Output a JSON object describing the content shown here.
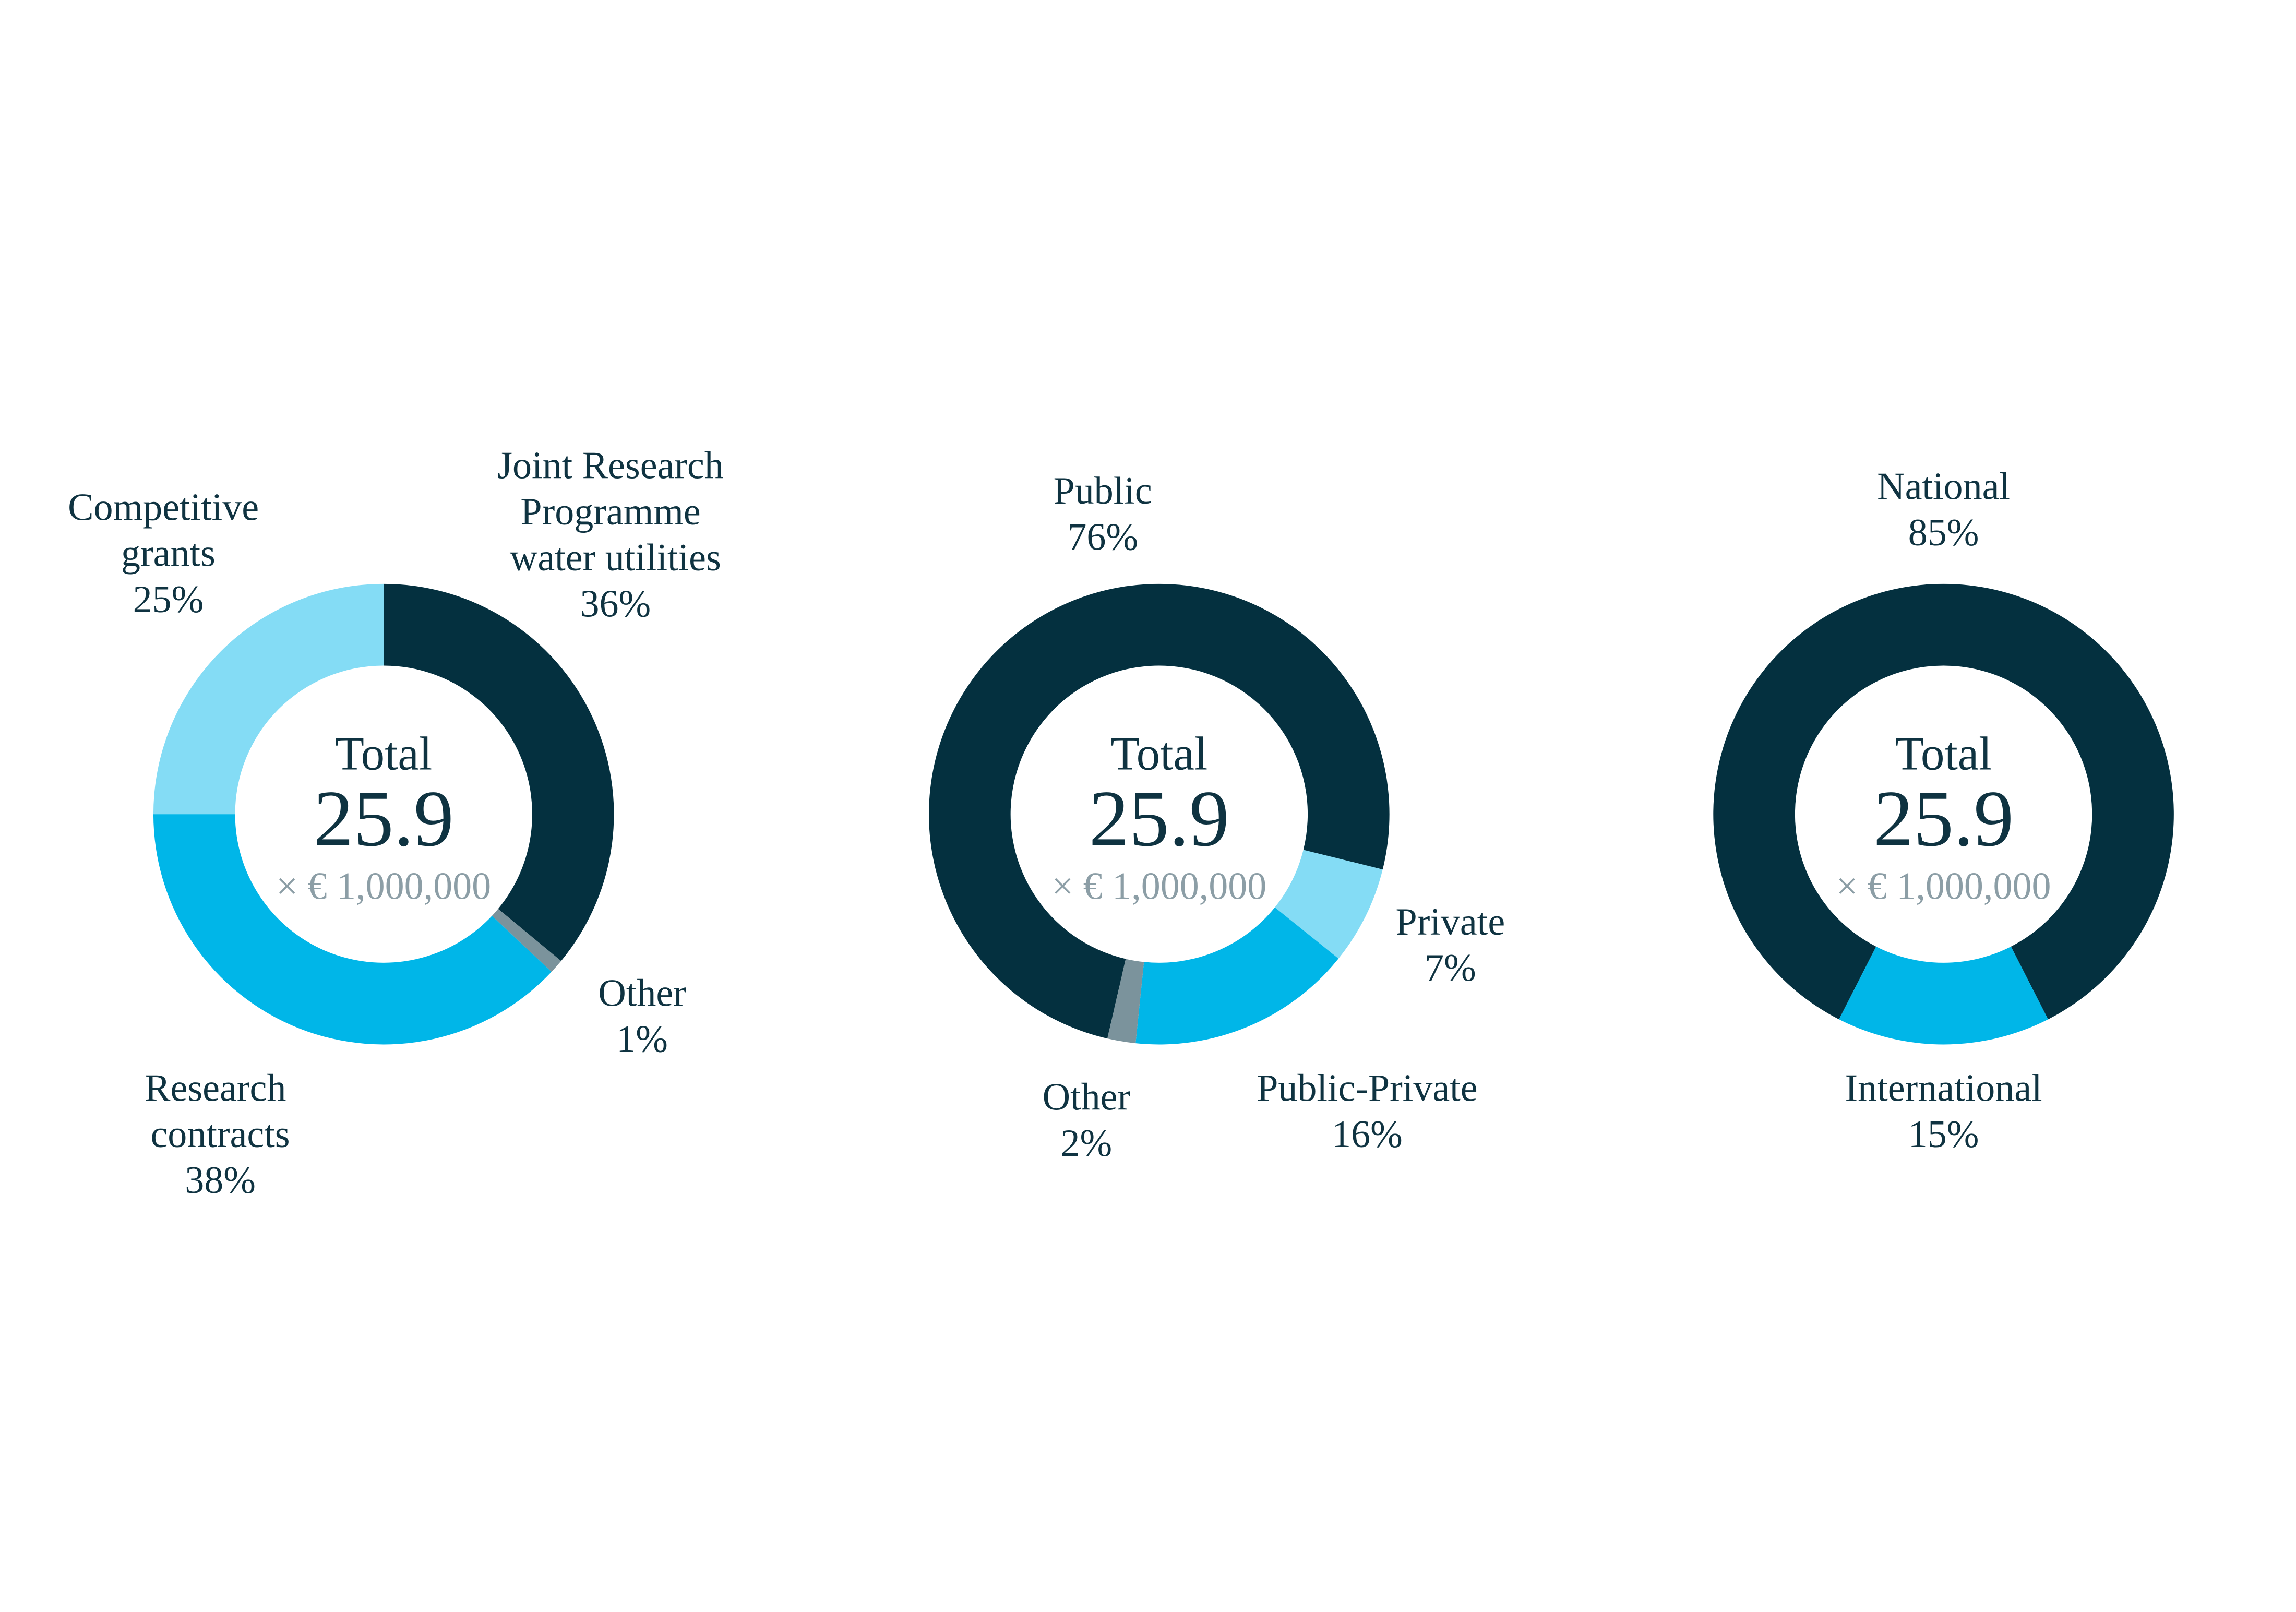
{
  "chart_data": [
    {
      "type": "donut",
      "center_label": "Total",
      "total": 25.9,
      "unit_label": "× € 1,000,000",
      "categories": [
        "Joint Research Programme water utilities",
        "Other",
        "Research contracts",
        "Competitive grants"
      ],
      "values": [
        36,
        1,
        38,
        25
      ],
      "value_labels": [
        "36%",
        "1%",
        "38%",
        "25%"
      ],
      "colors": [
        "#04303f",
        "#7b939c",
        "#00b6e8",
        "#84dcf5"
      ]
    },
    {
      "type": "donut",
      "center_label": "Total",
      "total": 25.9,
      "unit_label": "× € 1,000,000",
      "categories": [
        "Public",
        "Private",
        "Public-Private",
        "Other"
      ],
      "values": [
        76,
        7,
        16,
        2
      ],
      "value_labels": [
        "76%",
        "7%",
        "16%",
        "2%"
      ],
      "colors": [
        "#04303f",
        "#84dcf5",
        "#00b6e8",
        "#7b939c"
      ]
    },
    {
      "type": "donut",
      "center_label": "Total",
      "total": 25.9,
      "unit_label": "× € 1,000,000",
      "categories": [
        "National",
        "International"
      ],
      "values": [
        85,
        15
      ],
      "value_labels": [
        "85%",
        "15%"
      ],
      "colors": [
        "#04303f",
        "#00b6e8"
      ]
    }
  ]
}
